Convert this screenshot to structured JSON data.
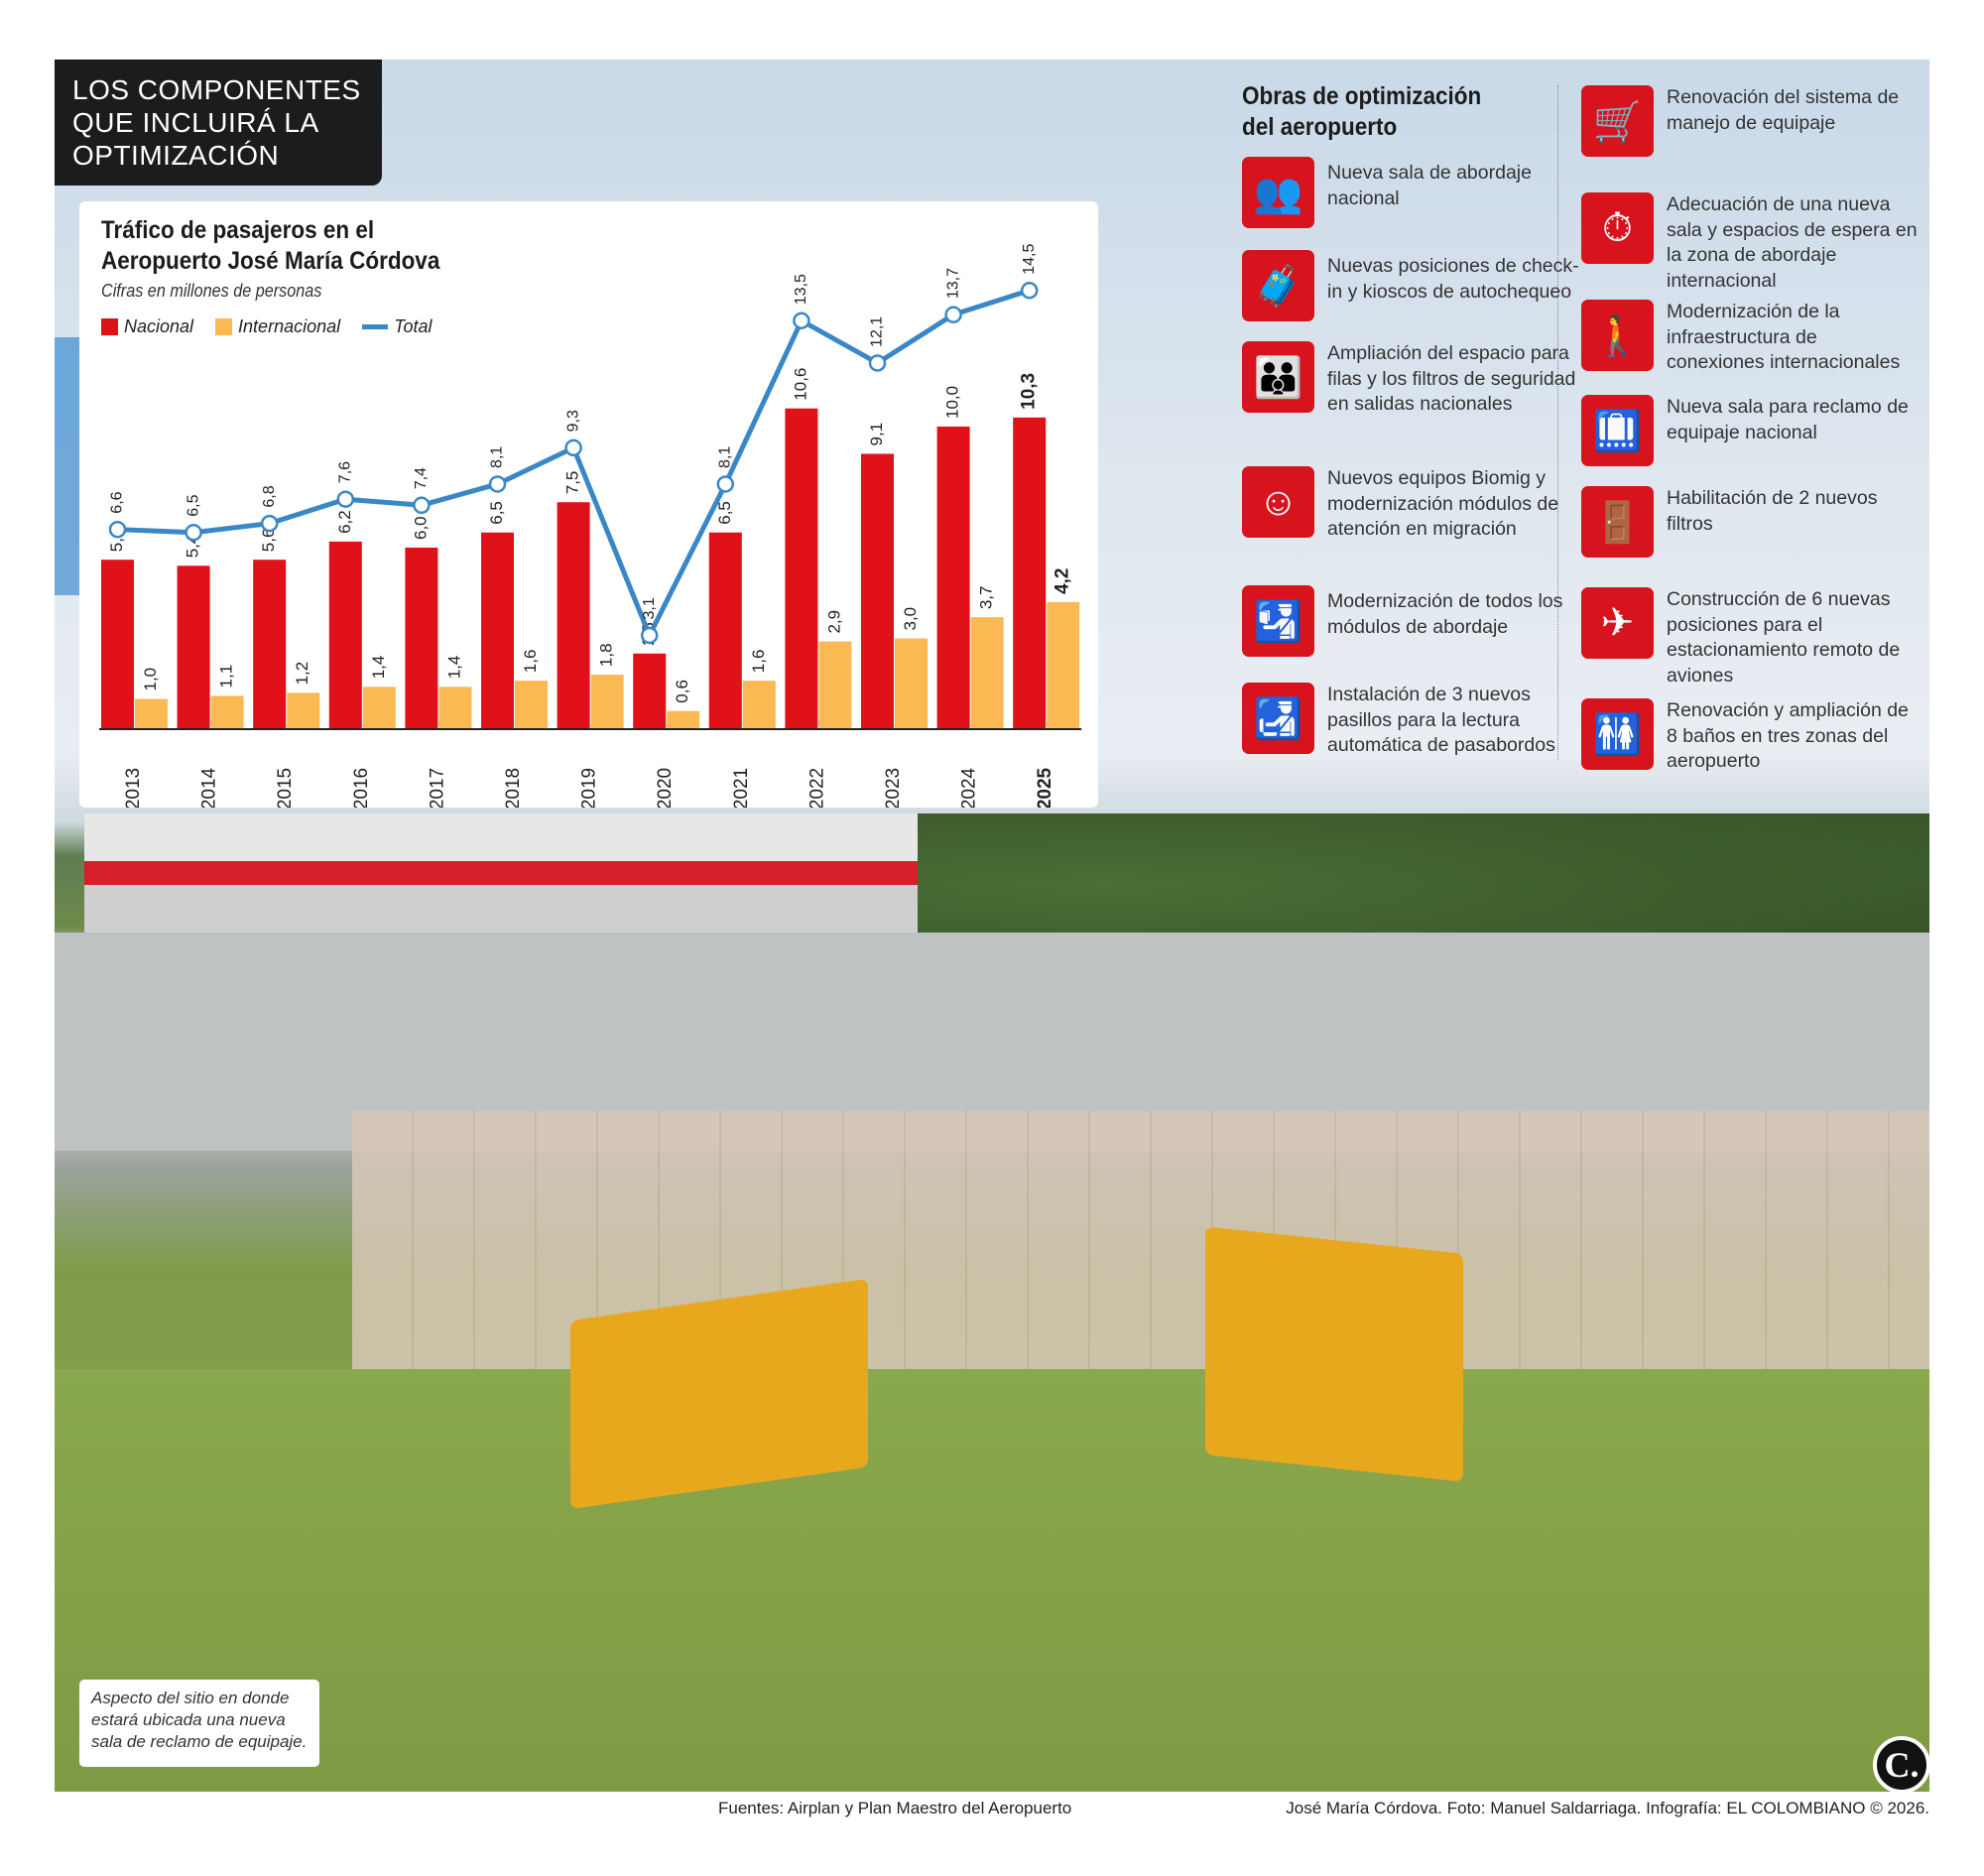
{
  "header": {
    "title_lines": [
      "LOS COMPONENTES",
      "QUE INCLUIRÁ LA",
      "OPTIMIZACIÓN"
    ]
  },
  "chart_data": {
    "type": "bar",
    "title_lines": [
      "Tráfico de pasajeros en el",
      "Aeropuerto José María Córdova"
    ],
    "subtitle": "Cifras en millones de personas",
    "categories": [
      "2013",
      "2014",
      "2015",
      "2016",
      "2017",
      "2018",
      "2019",
      "2020",
      "2021",
      "2022",
      "2023",
      "2024",
      "2025"
    ],
    "series": [
      {
        "name": "Nacional",
        "kind": "bar",
        "color": "#e01119",
        "values": [
          5.6,
          5.4,
          5.6,
          6.2,
          6.0,
          6.5,
          7.5,
          2.5,
          6.5,
          10.6,
          9.1,
          10.0,
          10.3
        ],
        "labels": [
          "5,6",
          "5,4",
          "5,6",
          "6,2",
          "6,0",
          "6,5",
          "7,5",
          "2,5",
          "6,5",
          "10,6",
          "9,1",
          "10,0",
          "10,3"
        ]
      },
      {
        "name": "Internacional",
        "kind": "bar",
        "color": "#fbb954",
        "values": [
          1.0,
          1.1,
          1.2,
          1.4,
          1.4,
          1.6,
          1.8,
          0.6,
          1.6,
          2.9,
          3.0,
          3.7,
          4.2
        ],
        "labels": [
          "1,0",
          "1,1",
          "1,2",
          "1,4",
          "1,4",
          "1,6",
          "1,8",
          "0,6",
          "1,6",
          "2,9",
          "3,0",
          "3,7",
          "4,2"
        ]
      },
      {
        "name": "Total",
        "kind": "line",
        "color": "#3a87c8",
        "values": [
          6.6,
          6.5,
          6.8,
          7.6,
          7.4,
          8.1,
          9.3,
          3.1,
          8.1,
          13.5,
          12.1,
          13.7,
          14.5
        ],
        "labels": [
          "6,6",
          "6,5",
          "6,8",
          "7,6",
          "7,4",
          "8,1",
          "9,3",
          "3,1",
          "8,1",
          "13,5",
          "12,1",
          "13,7",
          "14,5"
        ]
      }
    ],
    "highlight_category": "2025",
    "ylim": [
      0,
      15
    ],
    "grid": false,
    "legend_position": "top-left"
  },
  "panel": {
    "title_lines": [
      "Obras de optimización",
      "del aeropuerto"
    ],
    "items": [
      {
        "icon": "waiting-room-icon",
        "glyph": "👥",
        "text": "Nueva sala de abordaje nacional"
      },
      {
        "icon": "check-in-kiosk-icon",
        "glyph": "🧳",
        "text": "Nuevas posiciones de check-in y kioscos de autochequeo"
      },
      {
        "icon": "family-queue-icon",
        "glyph": "👪",
        "text": "Ampliación del espacio para filas y los filtros de seguridad en salidas nacionales"
      },
      {
        "icon": "face-recognition-icon",
        "glyph": "☺",
        "text": "Nuevos equipos Biomig y modernización módulos de atención en migración"
      },
      {
        "icon": "boarding-agent-icon",
        "glyph": "🛂",
        "text": "Modernización de todos los módulos de abordaje"
      },
      {
        "icon": "passport-icon",
        "glyph": "🛃",
        "text": "Instalación de 3 nuevos pasillos para la lectura automática de pasabordos"
      },
      {
        "icon": "baggage-cart-icon",
        "glyph": "🛒",
        "text": "Renovación del sistema de manejo de equipaje"
      },
      {
        "icon": "waiting-seat-clock-icon",
        "glyph": "⏱",
        "text": "Adecuación de una nueva sala y espacios de espera en la zona de abordaje internacional"
      },
      {
        "icon": "traveler-luggage-icon",
        "glyph": "🚶",
        "text": "Modernización de la infraestructura de conexiones internacionales"
      },
      {
        "icon": "baggage-claim-icon",
        "glyph": "🛄",
        "text": "Nueva sala para reclamo de equipaje nacional"
      },
      {
        "icon": "security-arch-icon",
        "glyph": "🚪",
        "text": "Habilitación de 2 nuevos filtros"
      },
      {
        "icon": "airplane-icon",
        "glyph": "✈",
        "text": "Construcción de 6 nuevas posiciones para el estacionamiento remoto de aviones"
      },
      {
        "icon": "restroom-icon",
        "glyph": "🚻",
        "text": "Renovación y ampliación de 8 baños en tres zonas del aeropuerto"
      }
    ]
  },
  "photo": {
    "caption": "Aspecto del sitio en donde estará ubicada una nueva sala de reclamo de equipaje.",
    "logo": "C."
  },
  "footer": {
    "sources": "Fuentes: Airplan y Plan Maestro del Aeropuerto",
    "credit": "José María Córdova. Foto: Manuel Saldarriaga. Infografía: EL COLOMBIANO © 2026."
  }
}
